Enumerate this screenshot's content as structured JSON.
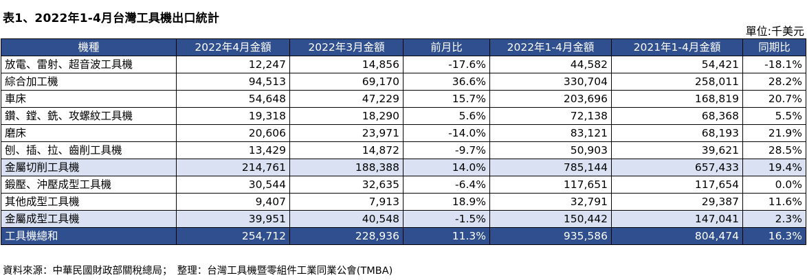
{
  "title": "表1、2022年1-4月台灣工具機出口統計",
  "unit": "單位:千美元",
  "table": {
    "headers": [
      "機種",
      "2022年4月金額",
      "2022年3月金額",
      "前月比",
      "2022年1-4月金額",
      "2021年1-4月金額",
      "同期比"
    ],
    "rows": [
      {
        "type": "normal",
        "cells": [
          "放電、雷射、超音波工具機",
          "12,247",
          "14,856",
          "-17.6%",
          "44,582",
          "54,421",
          "-18.1%"
        ]
      },
      {
        "type": "normal",
        "cells": [
          "綜合加工機",
          "94,513",
          "69,170",
          "36.6%",
          "330,704",
          "258,011",
          "28.2%"
        ]
      },
      {
        "type": "normal",
        "cells": [
          "車床",
          "54,648",
          "47,229",
          "15.7%",
          "203,696",
          "168,819",
          "20.7%"
        ]
      },
      {
        "type": "normal",
        "cells": [
          "鑽、鏜、銑、攻螺紋工具機",
          "19,318",
          "18,290",
          "5.6%",
          "72,138",
          "68,368",
          "5.5%"
        ]
      },
      {
        "type": "normal",
        "cells": [
          "磨床",
          "20,606",
          "23,971",
          "-14.0%",
          "83,121",
          "68,193",
          "21.9%"
        ]
      },
      {
        "type": "normal",
        "cells": [
          "刨、插、拉、齒削工具機",
          "13,429",
          "14,872",
          "-9.7%",
          "50,903",
          "39,621",
          "28.5%"
        ]
      },
      {
        "type": "subtotal",
        "cells": [
          "金屬切削工具機",
          "214,761",
          "188,388",
          "14.0%",
          "785,144",
          "657,433",
          "19.4%"
        ]
      },
      {
        "type": "normal",
        "cells": [
          "鍛壓、沖壓成型工具機",
          "30,544",
          "32,635",
          "-6.4%",
          "117,651",
          "117,654",
          "0.0%"
        ]
      },
      {
        "type": "normal",
        "cells": [
          "其他成型工具機",
          "9,407",
          "7,913",
          "18.9%",
          "32,791",
          "29,387",
          "11.6%"
        ]
      },
      {
        "type": "subtotal",
        "cells": [
          "金屬成型工具機",
          "39,951",
          "40,548",
          "-1.5%",
          "150,442",
          "147,041",
          "2.3%"
        ]
      },
      {
        "type": "total",
        "cells": [
          "工具機總和",
          "254,712",
          "228,936",
          "11.3%",
          "935,586",
          "804,474",
          "16.3%"
        ]
      }
    ]
  },
  "footer": "資料來源：中華民國財政部關稅總局；　整理：台灣工具機暨零組件工業同業公會(TMBA)",
  "colors": {
    "header": "#2f4f8f",
    "subtotal": "#d9e1f2",
    "total": "#2f4f8f"
  }
}
